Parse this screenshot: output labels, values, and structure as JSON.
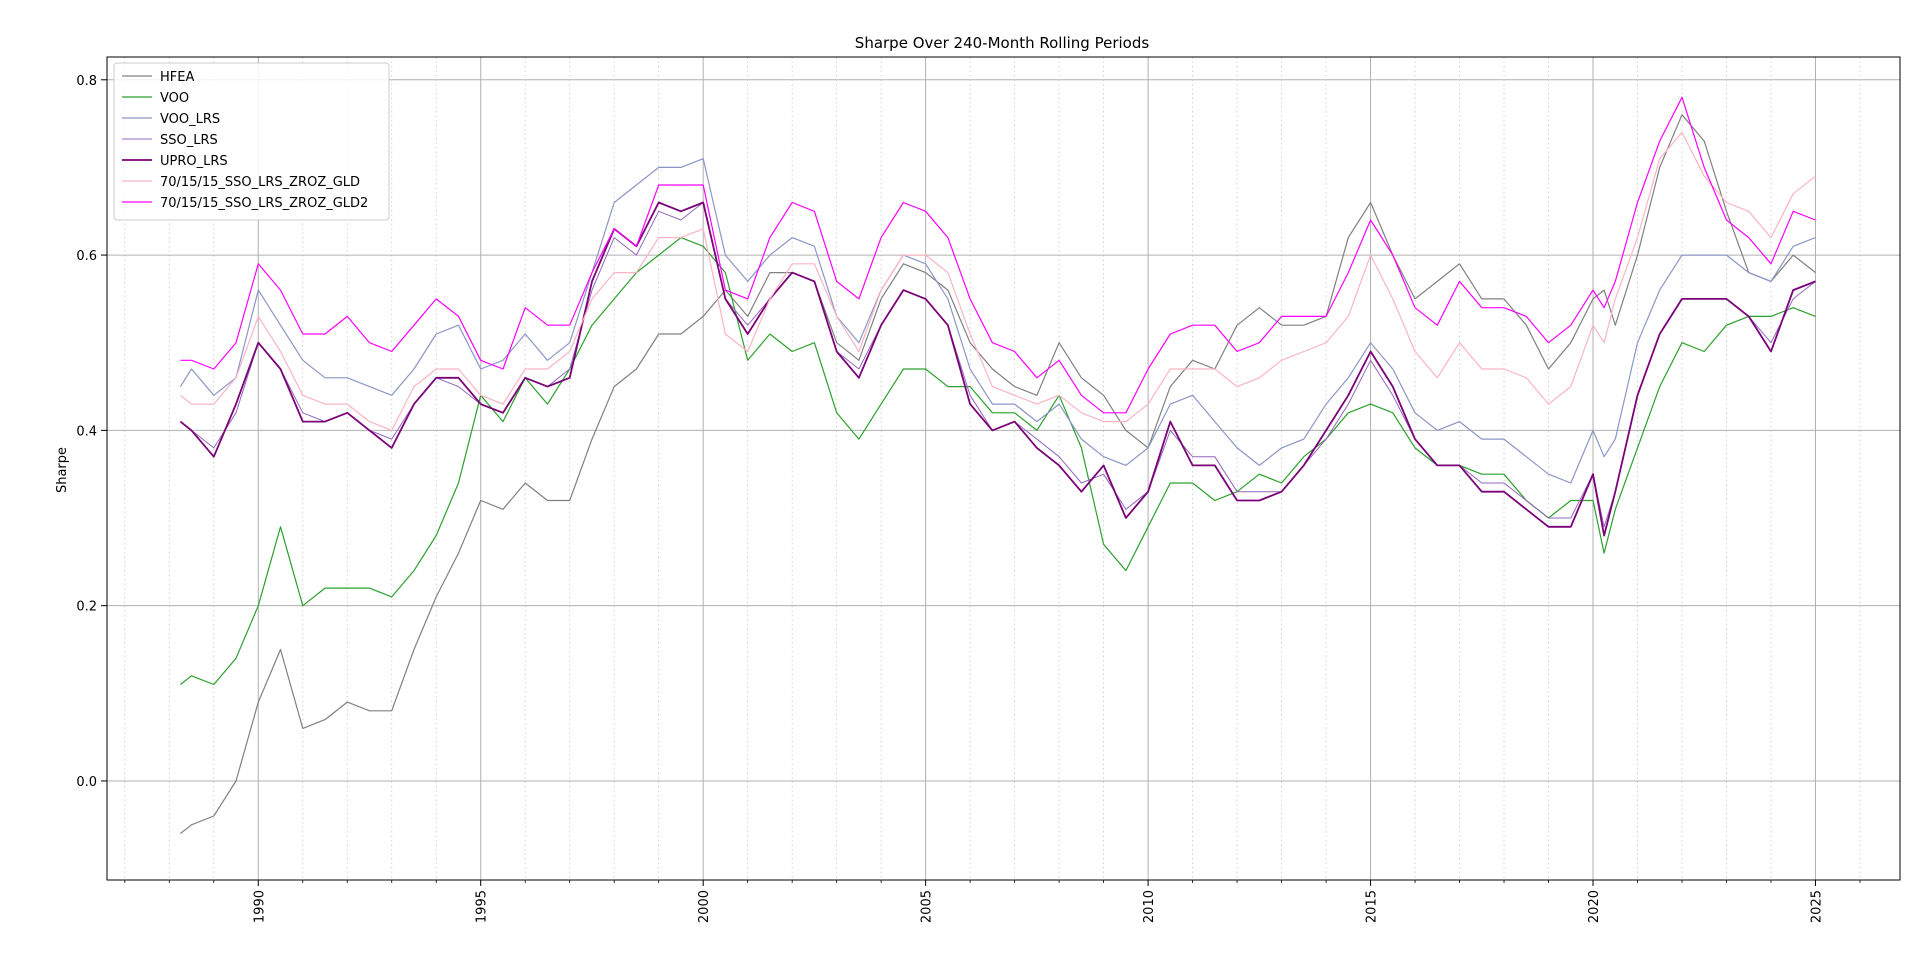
{
  "chart_data": {
    "type": "line",
    "title": "Sharpe Over 240-Month Rolling Periods",
    "xlabel": "",
    "ylabel": "Sharpe",
    "xlim": [
      1986.6,
      2026.9
    ],
    "ylim": [
      -0.113,
      0.826
    ],
    "x_ticks": [
      1990,
      1995,
      2000,
      2005,
      2010,
      2015,
      2020,
      2025
    ],
    "x_tick_labels": [
      "1990",
      "1995",
      "2000",
      "2005",
      "2010",
      "2015",
      "2020",
      "2025"
    ],
    "y_ticks": [
      0.0,
      0.2,
      0.4,
      0.6,
      0.8
    ],
    "y_tick_labels": [
      "0.0",
      "0.2",
      "0.4",
      "0.6",
      "0.8"
    ],
    "grid": "major solid, minor dotted (x)",
    "legend_position": "top-left",
    "x": [
      1988.25,
      1988.5,
      1989.0,
      1989.5,
      1990.0,
      1990.5,
      1991.0,
      1991.5,
      1992.0,
      1992.5,
      1993.0,
      1993.5,
      1994.0,
      1994.5,
      1995.0,
      1995.5,
      1996.0,
      1996.5,
      1997.0,
      1997.5,
      1998.0,
      1998.5,
      1999.0,
      1999.5,
      2000.0,
      2000.5,
      2001.0,
      2001.5,
      2002.0,
      2002.5,
      2003.0,
      2003.5,
      2004.0,
      2004.5,
      2005.0,
      2005.5,
      2006.0,
      2006.5,
      2007.0,
      2007.5,
      2008.0,
      2008.5,
      2009.0,
      2009.5,
      2010.0,
      2010.5,
      2011.0,
      2011.5,
      2012.0,
      2012.5,
      2013.0,
      2013.5,
      2014.0,
      2014.5,
      2015.0,
      2015.5,
      2016.0,
      2016.5,
      2017.0,
      2017.5,
      2018.0,
      2018.5,
      2019.0,
      2019.5,
      2020.0,
      2020.25,
      2020.5,
      2021.0,
      2021.5,
      2022.0,
      2022.5,
      2023.0,
      2023.5,
      2024.0,
      2024.5,
      2025.0
    ],
    "series": [
      {
        "name": "HFEA",
        "color": "#808080",
        "width": 1.2,
        "values": [
          -0.06,
          -0.05,
          -0.04,
          0.0,
          0.09,
          0.15,
          0.06,
          0.07,
          0.09,
          0.08,
          0.08,
          0.15,
          0.21,
          0.26,
          0.32,
          0.31,
          0.34,
          0.32,
          0.32,
          0.39,
          0.45,
          0.47,
          0.51,
          0.51,
          0.53,
          0.56,
          0.53,
          0.58,
          0.58,
          0.57,
          0.5,
          0.48,
          0.55,
          0.59,
          0.58,
          0.56,
          0.5,
          0.47,
          0.45,
          0.44,
          0.5,
          0.46,
          0.44,
          0.4,
          0.38,
          0.45,
          0.48,
          0.47,
          0.52,
          0.54,
          0.52,
          0.52,
          0.53,
          0.62,
          0.66,
          0.6,
          0.55,
          0.57,
          0.59,
          0.55,
          0.55,
          0.52,
          0.47,
          0.5,
          0.55,
          0.56,
          0.52,
          0.6,
          0.7,
          0.76,
          0.73,
          0.65,
          0.58,
          0.57,
          0.6,
          0.58
        ]
      },
      {
        "name": "VOO",
        "color": "#2ca02c",
        "width": 1.2,
        "values": [
          0.11,
          0.12,
          0.11,
          0.14,
          0.2,
          0.29,
          0.2,
          0.22,
          0.22,
          0.22,
          0.21,
          0.24,
          0.28,
          0.34,
          0.44,
          0.41,
          0.46,
          0.43,
          0.47,
          0.52,
          0.55,
          0.58,
          0.6,
          0.62,
          0.61,
          0.58,
          0.48,
          0.51,
          0.49,
          0.5,
          0.42,
          0.39,
          0.43,
          0.47,
          0.47,
          0.45,
          0.45,
          0.42,
          0.42,
          0.4,
          0.44,
          0.38,
          0.27,
          0.24,
          0.29,
          0.34,
          0.34,
          0.32,
          0.33,
          0.35,
          0.34,
          0.37,
          0.39,
          0.42,
          0.43,
          0.42,
          0.38,
          0.36,
          0.36,
          0.35,
          0.35,
          0.32,
          0.3,
          0.32,
          0.32,
          0.26,
          0.31,
          0.38,
          0.45,
          0.5,
          0.49,
          0.52,
          0.53,
          0.53,
          0.54,
          0.53
        ]
      },
      {
        "name": "VOO_LRS",
        "color": "#8c96c6",
        "width": 1.2,
        "values": [
          0.45,
          0.47,
          0.44,
          0.46,
          0.56,
          0.52,
          0.48,
          0.46,
          0.46,
          0.45,
          0.44,
          0.47,
          0.51,
          0.52,
          0.47,
          0.48,
          0.51,
          0.48,
          0.5,
          0.58,
          0.66,
          0.68,
          0.7,
          0.7,
          0.71,
          0.6,
          0.57,
          0.6,
          0.62,
          0.61,
          0.53,
          0.5,
          0.56,
          0.6,
          0.59,
          0.55,
          0.47,
          0.43,
          0.43,
          0.41,
          0.43,
          0.39,
          0.37,
          0.36,
          0.38,
          0.43,
          0.44,
          0.41,
          0.38,
          0.36,
          0.38,
          0.39,
          0.43,
          0.46,
          0.5,
          0.47,
          0.42,
          0.4,
          0.41,
          0.39,
          0.39,
          0.37,
          0.35,
          0.34,
          0.4,
          0.37,
          0.39,
          0.5,
          0.56,
          0.6,
          0.6,
          0.6,
          0.58,
          0.57,
          0.61,
          0.62
        ]
      },
      {
        "name": "SSO_LRS",
        "color": "#9467bd",
        "width": 1.0,
        "values": [
          0.41,
          0.4,
          0.38,
          0.42,
          0.5,
          0.47,
          0.42,
          0.41,
          0.42,
          0.4,
          0.39,
          0.43,
          0.46,
          0.45,
          0.43,
          0.42,
          0.46,
          0.45,
          0.47,
          0.56,
          0.62,
          0.6,
          0.65,
          0.64,
          0.66,
          0.55,
          0.52,
          0.55,
          0.58,
          0.57,
          0.49,
          0.47,
          0.52,
          0.56,
          0.55,
          0.52,
          0.44,
          0.4,
          0.41,
          0.39,
          0.37,
          0.34,
          0.35,
          0.31,
          0.33,
          0.4,
          0.37,
          0.37,
          0.33,
          0.33,
          0.33,
          0.36,
          0.39,
          0.43,
          0.48,
          0.44,
          0.39,
          0.36,
          0.36,
          0.34,
          0.34,
          0.32,
          0.3,
          0.3,
          0.35,
          0.29,
          0.33,
          0.44,
          0.51,
          0.55,
          0.55,
          0.55,
          0.53,
          0.5,
          0.55,
          0.57
        ]
      },
      {
        "name": "UPRO_LRS",
        "color": "#7a0177",
        "width": 1.8,
        "values": [
          0.41,
          0.4,
          0.37,
          0.43,
          0.5,
          0.47,
          0.41,
          0.41,
          0.42,
          0.4,
          0.38,
          0.43,
          0.46,
          0.46,
          0.43,
          0.42,
          0.46,
          0.45,
          0.46,
          0.57,
          0.63,
          0.61,
          0.66,
          0.65,
          0.66,
          0.55,
          0.51,
          0.55,
          0.58,
          0.57,
          0.49,
          0.46,
          0.52,
          0.56,
          0.55,
          0.52,
          0.43,
          0.4,
          0.41,
          0.38,
          0.36,
          0.33,
          0.36,
          0.3,
          0.33,
          0.41,
          0.36,
          0.36,
          0.32,
          0.32,
          0.33,
          0.36,
          0.4,
          0.44,
          0.49,
          0.45,
          0.39,
          0.36,
          0.36,
          0.33,
          0.33,
          0.31,
          0.29,
          0.29,
          0.35,
          0.28,
          0.33,
          0.44,
          0.51,
          0.55,
          0.55,
          0.55,
          0.53,
          0.49,
          0.56,
          0.57
        ]
      },
      {
        "name": "70/15/15_SSO_LRS_ZROZ_GLD",
        "color": "#fbb4c4",
        "width": 1.2,
        "values": [
          0.44,
          0.43,
          0.43,
          0.46,
          0.53,
          0.49,
          0.44,
          0.43,
          0.43,
          0.41,
          0.4,
          0.45,
          0.47,
          0.47,
          0.44,
          0.43,
          0.47,
          0.47,
          0.49,
          0.55,
          0.58,
          0.58,
          0.62,
          0.62,
          0.63,
          0.51,
          0.49,
          0.55,
          0.59,
          0.59,
          0.53,
          0.49,
          0.56,
          0.6,
          0.6,
          0.58,
          0.51,
          0.45,
          0.44,
          0.43,
          0.44,
          0.42,
          0.41,
          0.41,
          0.43,
          0.47,
          0.47,
          0.47,
          0.45,
          0.46,
          0.48,
          0.49,
          0.5,
          0.53,
          0.6,
          0.55,
          0.49,
          0.46,
          0.5,
          0.47,
          0.47,
          0.46,
          0.43,
          0.45,
          0.52,
          0.5,
          0.55,
          0.62,
          0.71,
          0.74,
          0.69,
          0.66,
          0.65,
          0.62,
          0.67,
          0.69
        ]
      },
      {
        "name": "70/15/15_SSO_LRS_ZROZ_GLD2",
        "color": "#ff00ff",
        "width": 1.2,
        "values": [
          0.48,
          0.48,
          0.47,
          0.5,
          0.59,
          0.56,
          0.51,
          0.51,
          0.53,
          0.5,
          0.49,
          0.52,
          0.55,
          0.53,
          0.48,
          0.47,
          0.54,
          0.52,
          0.52,
          0.58,
          0.63,
          0.61,
          0.68,
          0.68,
          0.68,
          0.56,
          0.55,
          0.62,
          0.66,
          0.65,
          0.57,
          0.55,
          0.62,
          0.66,
          0.65,
          0.62,
          0.55,
          0.5,
          0.49,
          0.46,
          0.48,
          0.44,
          0.42,
          0.42,
          0.47,
          0.51,
          0.52,
          0.52,
          0.49,
          0.5,
          0.53,
          0.53,
          0.53,
          0.58,
          0.64,
          0.6,
          0.54,
          0.52,
          0.57,
          0.54,
          0.54,
          0.53,
          0.5,
          0.52,
          0.56,
          0.54,
          0.57,
          0.66,
          0.73,
          0.78,
          0.7,
          0.64,
          0.62,
          0.59,
          0.65,
          0.64
        ]
      }
    ]
  }
}
